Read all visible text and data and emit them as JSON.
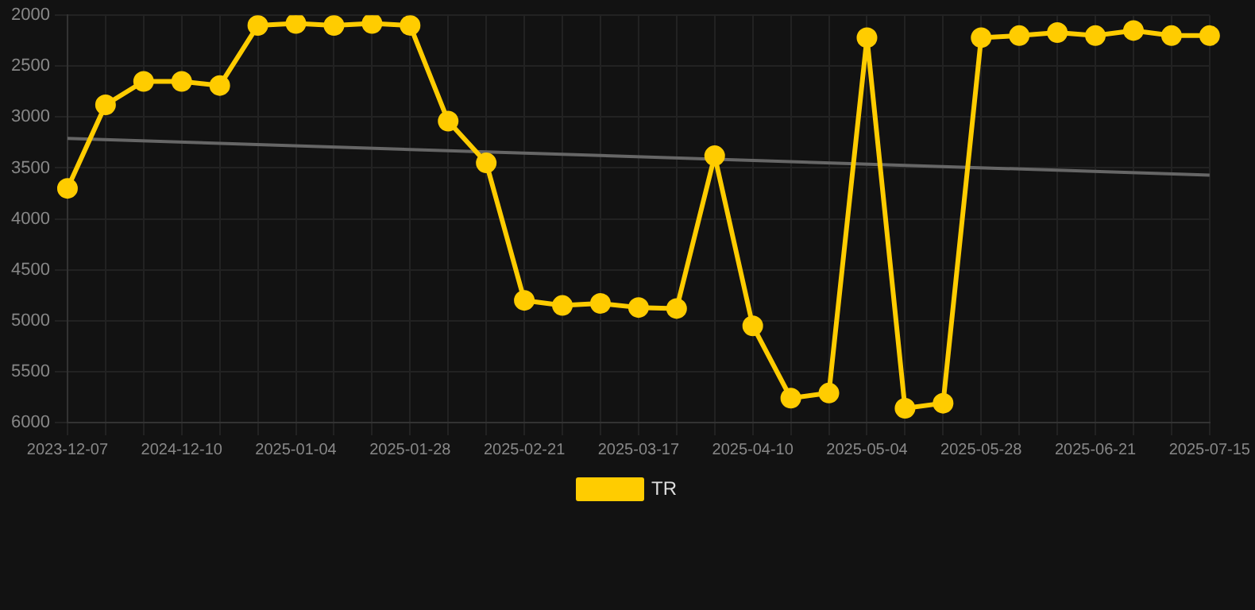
{
  "chart_data": {
    "type": "line",
    "categories": [
      "2023-12-07",
      null,
      null,
      "2024-12-10",
      null,
      null,
      "2025-01-04",
      null,
      null,
      "2025-01-28",
      null,
      null,
      "2025-02-21",
      null,
      null,
      "2025-03-17",
      null,
      null,
      "2025-04-10",
      null,
      null,
      "2025-05-04",
      null,
      null,
      "2025-05-28",
      null,
      null,
      "2025-06-21",
      null,
      null,
      "2025-07-15"
    ],
    "series": [
      {
        "name": "TR",
        "color": "#ffcc00",
        "marker": "circle",
        "values": [
          3700,
          2880,
          2650,
          2650,
          2690,
          2100,
          2080,
          2100,
          2080,
          2100,
          3040,
          3450,
          4800,
          4850,
          4830,
          4870,
          4880,
          3380,
          5050,
          5760,
          5710,
          2220,
          5860,
          5810,
          2220,
          2200,
          2170,
          2200,
          2150,
          2200,
          2200
        ]
      },
      {
        "type": "line",
        "color": "#666666",
        "marker": "none",
        "values": [
          3210,
          null,
          null,
          null,
          null,
          null,
          null,
          null,
          null,
          null,
          null,
          null,
          null,
          null,
          null,
          null,
          null,
          null,
          null,
          null,
          null,
          null,
          null,
          null,
          null,
          null,
          null,
          null,
          null,
          null,
          3570
        ]
      }
    ],
    "ylim": [
      6000,
      2000
    ],
    "yticks": [
      2000,
      2500,
      3000,
      3500,
      4000,
      4500,
      5000,
      5500,
      6000
    ],
    "grid": true,
    "legend": "bottom"
  }
}
